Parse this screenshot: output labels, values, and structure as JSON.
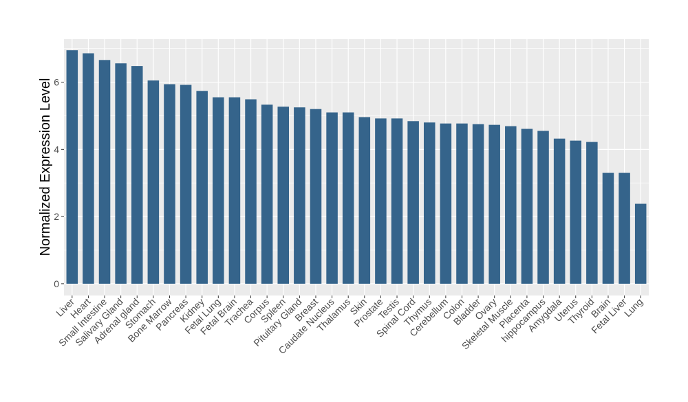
{
  "chart_data": {
    "type": "bar",
    "title": "",
    "xlabel": "",
    "ylabel": "Normalized Expression Level",
    "ylim": [
      -0.35,
      7.28
    ],
    "yticks": [
      0,
      2,
      4,
      6
    ],
    "grid": true,
    "bar_color": "#35648B",
    "panel_color": "#EBEBEB",
    "categories": [
      "Liver",
      "Heart",
      "Small Intestine",
      "Salivary Gland",
      "Adrenal gland",
      "Stomach",
      "Bone Marrow",
      "Pancreas",
      "Kidney",
      "Fetal Lung",
      "Fetal Brain",
      "Trachea",
      "Corpus",
      "Spleen",
      "Pituitary Gland",
      "Breast",
      "Caudate Nucleus",
      "Thalamus",
      "Skin",
      "Prostate",
      "Testis",
      "Spinal Cord",
      "Thymus",
      "Cerebellum",
      "Colon",
      "Bladder",
      "Ovary",
      "Skeletal Muscle",
      "Placenta",
      "hippocampus",
      "Amygdala",
      "Uterus",
      "Thyroid",
      "Brain",
      "Fetal Liver",
      "Lung"
    ],
    "values": [
      6.95,
      6.86,
      6.66,
      6.56,
      6.48,
      6.05,
      5.94,
      5.92,
      5.74,
      5.55,
      5.55,
      5.49,
      5.33,
      5.27,
      5.25,
      5.2,
      5.1,
      5.1,
      4.96,
      4.92,
      4.92,
      4.84,
      4.8,
      4.77,
      4.77,
      4.75,
      4.73,
      4.69,
      4.61,
      4.55,
      4.32,
      4.26,
      4.22,
      3.3,
      3.3,
      2.38
    ]
  }
}
